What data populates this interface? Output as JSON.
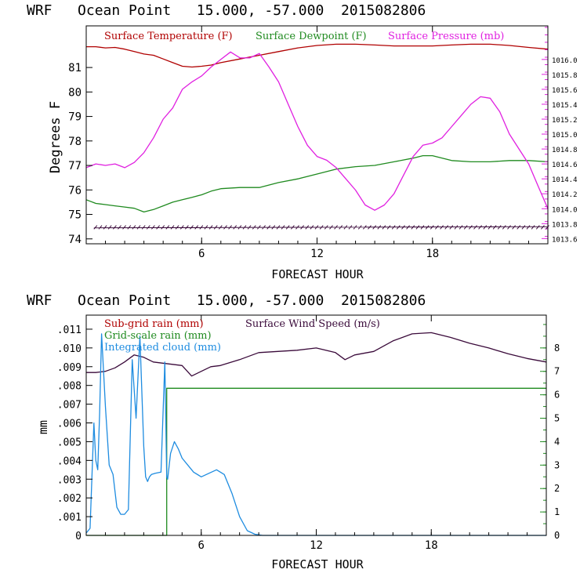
{
  "colors": {
    "temperature": "#b00000",
    "dewpoint": "#1f8a1f",
    "pressure": "#e020e0",
    "wind": "#3a0a3a",
    "cloud": "#1e8ce0",
    "grid_rain": "#1f8a1f",
    "sub_rain": "#b00000",
    "frame": "#000000",
    "right_axis_1": "#e020e0",
    "right_axis_2": "#1f8a1f"
  },
  "chart_data": [
    {
      "type": "line",
      "title": "WRF   Ocean Point   15.000, -57.000  2015082806",
      "xlabel": "FORECAST HOUR",
      "ylabel": "Degrees F",
      "xlim": [
        0,
        24
      ],
      "ylim": [
        73.8,
        82.7
      ],
      "y2lim": [
        1013.53,
        1016.45
      ],
      "xticks": [
        6,
        12,
        18
      ],
      "yticks": [
        74,
        75,
        76,
        77,
        78,
        79,
        80,
        81
      ],
      "y2ticks": [
        1013.6,
        1013.8,
        1014.0,
        1014.2,
        1014.4,
        1014.6,
        1014.8,
        1015.0,
        1015.2,
        1015.4,
        1015.6,
        1015.8,
        1016.0
      ],
      "y2tick_labels": [
        "1013.6",
        "1013.8",
        "1014.0",
        "1014.2",
        "1014.4",
        "1014.6",
        "1014.8",
        "1015.0",
        "1015.2",
        "1015.4",
        "1015.6",
        "1015.8",
        "1016.0"
      ],
      "legend": [
        "Surface Temperature (F)",
        "Surface Dewpoint (F)",
        "Surface Pressure (mb)"
      ],
      "series": [
        {
          "name": "Surface Temperature (F)",
          "axis": "left",
          "x": [
            0,
            0.5,
            1,
            1.5,
            2,
            2.5,
            3,
            3.5,
            4,
            4.5,
            5,
            5.5,
            6,
            6.5,
            7,
            8,
            9,
            10,
            11,
            12,
            13,
            14,
            15,
            16,
            17,
            18,
            19,
            20,
            21,
            22,
            23,
            24
          ],
          "y": [
            81.85,
            81.85,
            81.8,
            81.82,
            81.75,
            81.65,
            81.55,
            81.5,
            81.35,
            81.2,
            81.05,
            81.02,
            81.05,
            81.1,
            81.2,
            81.35,
            81.5,
            81.65,
            81.8,
            81.9,
            81.95,
            81.95,
            81.92,
            81.88,
            81.88,
            81.88,
            81.92,
            81.95,
            81.95,
            81.9,
            81.82,
            81.75
          ]
        },
        {
          "name": "Surface Dewpoint (F)",
          "axis": "left",
          "x": [
            0,
            0.5,
            1,
            1.5,
            2,
            2.5,
            3,
            3.5,
            4,
            4.5,
            5,
            5.5,
            6,
            6.5,
            7,
            8,
            9,
            10,
            11,
            12,
            13,
            14,
            15,
            16,
            17,
            17.5,
            18,
            19,
            20,
            21,
            22,
            23,
            24
          ],
          "y": [
            75.6,
            75.45,
            75.4,
            75.35,
            75.3,
            75.25,
            75.1,
            75.2,
            75.35,
            75.5,
            75.6,
            75.7,
            75.8,
            75.95,
            76.05,
            76.1,
            76.1,
            76.3,
            76.45,
            76.65,
            76.85,
            76.95,
            77.0,
            77.15,
            77.3,
            77.4,
            77.4,
            77.2,
            77.15,
            77.15,
            77.2,
            77.2,
            77.15
          ]
        },
        {
          "name": "Surface Pressure (mb)",
          "axis": "right",
          "x": [
            0,
            0.5,
            1,
            1.5,
            2,
            2.5,
            3,
            3.5,
            4,
            4.5,
            5,
            5.5,
            6,
            6.5,
            7,
            7.5,
            8,
            8.5,
            9,
            9.5,
            10,
            10.5,
            11,
            11.5,
            12,
            12.5,
            13,
            13.5,
            14,
            14.5,
            15,
            15.5,
            16,
            16.5,
            17,
            17.5,
            18,
            18.5,
            19,
            19.5,
            20,
            20.5,
            21,
            21.5,
            22,
            22.5,
            23,
            23.5,
            24
          ],
          "y": [
            1014.55,
            1014.6,
            1014.58,
            1014.6,
            1014.55,
            1014.62,
            1014.75,
            1014.95,
            1015.2,
            1015.35,
            1015.6,
            1015.7,
            1015.78,
            1015.9,
            1016.0,
            1016.1,
            1016.02,
            1016.02,
            1016.08,
            1015.9,
            1015.7,
            1015.4,
            1015.1,
            1014.85,
            1014.7,
            1014.65,
            1014.55,
            1014.4,
            1014.25,
            1014.05,
            1013.98,
            1014.05,
            1014.2,
            1014.45,
            1014.7,
            1014.85,
            1014.88,
            1014.95,
            1015.1,
            1015.25,
            1015.4,
            1015.5,
            1015.48,
            1015.3,
            1015.0,
            1014.8,
            1014.6,
            1014.3,
            1014.0
          ]
        }
      ]
    },
    {
      "type": "line",
      "title": "WRF   Ocean Point   15.000, -57.000  2015082806",
      "xlabel": "FORECAST HOUR",
      "ylabel": "mm",
      "xlim": [
        0,
        24
      ],
      "ylim": [
        0,
        0.01175
      ],
      "y2lim": [
        0,
        9.4
      ],
      "xticks": [
        6,
        12,
        18
      ],
      "yticks": [
        0,
        0.001,
        0.002,
        0.003,
        0.004,
        0.005,
        0.006,
        0.007,
        0.008,
        0.009,
        0.01,
        0.011
      ],
      "ytick_labels": [
        "0",
        ".001",
        ".002",
        ".003",
        ".004",
        ".005",
        ".006",
        ".007",
        ".008",
        ".009",
        ".010",
        ".011"
      ],
      "y2ticks": [
        0,
        1,
        2,
        3,
        4,
        5,
        6,
        7,
        8
      ],
      "y2tick_labels": [
        "0",
        "1",
        "2",
        "3",
        "4",
        "5",
        "6",
        "7",
        "8"
      ],
      "legend": [
        "Sub-grid rain (mm)",
        "Grid-scale rain (mm)",
        "Integrated cloud (mm)",
        "Surface Wind Speed (m/s)"
      ],
      "series": [
        {
          "name": "Surface Wind Speed (m/s)",
          "axis": "right",
          "x": [
            0,
            0.5,
            1,
            1.5,
            2,
            2.5,
            3,
            3.5,
            4,
            4.5,
            5,
            5.5,
            6,
            6.5,
            7,
            8,
            9,
            10,
            11,
            12,
            13,
            13.5,
            14,
            15,
            16,
            17,
            18,
            19,
            20,
            21,
            22,
            23,
            24
          ],
          "y": [
            6.95,
            6.95,
            7.0,
            7.15,
            7.4,
            7.7,
            7.6,
            7.4,
            7.35,
            7.3,
            7.25,
            6.8,
            7.0,
            7.2,
            7.25,
            7.5,
            7.8,
            7.85,
            7.9,
            8.0,
            7.8,
            7.5,
            7.7,
            7.85,
            8.3,
            8.6,
            8.65,
            8.45,
            8.2,
            8.0,
            7.75,
            7.55,
            7.4
          ]
        },
        {
          "name": "Grid-scale rain (mm)",
          "axis": "left",
          "x": [
            0,
            4.2,
            4.2,
            24
          ],
          "y": [
            0,
            0,
            0.00785,
            0.00785
          ]
        },
        {
          "name": "Integrated cloud (mm)",
          "axis": "right",
          "x": [
            0,
            0.2,
            0.4,
            0.5,
            0.6,
            0.7,
            0.8,
            1.0,
            1.2,
            1.4,
            1.6,
            1.8,
            2.0,
            2.2,
            2.4,
            2.6,
            2.8,
            3.0,
            3.1,
            3.2,
            3.3,
            3.4,
            3.6,
            3.9,
            4.1,
            4.2,
            4.25,
            4.4,
            4.6,
            4.8,
            5.0,
            5.3,
            5.6,
            6.0,
            6.4,
            6.8,
            7.2,
            7.6,
            8.0,
            8.4,
            8.8,
            9.2,
            24
          ],
          "y": [
            0.1,
            0.3,
            4.8,
            3.2,
            2.8,
            5.2,
            8.6,
            5.5,
            3.0,
            2.6,
            1.2,
            0.9,
            0.9,
            1.1,
            7.5,
            5.0,
            8.5,
            3.8,
            2.5,
            2.3,
            2.5,
            2.6,
            2.65,
            2.7,
            7.4,
            2.5,
            2.4,
            3.5,
            4.0,
            3.7,
            3.3,
            3.0,
            2.7,
            2.5,
            2.65,
            2.8,
            2.6,
            1.8,
            0.8,
            0.2,
            0.05,
            0.0,
            0.0
          ]
        }
      ]
    }
  ]
}
